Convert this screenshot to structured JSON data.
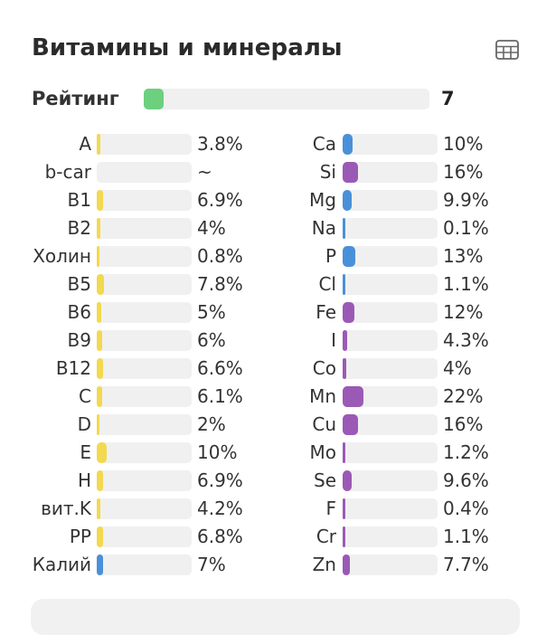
{
  "title": "Витамины и минералы",
  "rating": {
    "label": "Рейтинг",
    "value": "7",
    "fill_fraction": 0.07,
    "color": "#6cd07e"
  },
  "colors": {
    "yellow": "#f2d94e",
    "blue": "#4a90d9",
    "purple": "#9b59b6",
    "track": "#f0f0f0"
  },
  "icons": {
    "table": "table-icon"
  },
  "vitamins": [
    {
      "name": "A",
      "pct": "3.8%",
      "value": 3.8,
      "color": "yellow"
    },
    {
      "name": "b-car",
      "pct": "~",
      "value": 0,
      "color": "yellow"
    },
    {
      "name": "B1",
      "pct": "6.9%",
      "value": 6.9,
      "color": "yellow"
    },
    {
      "name": "B2",
      "pct": "4%",
      "value": 4,
      "color": "yellow"
    },
    {
      "name": "Холин",
      "pct": "0.8%",
      "value": 0.8,
      "color": "yellow"
    },
    {
      "name": "B5",
      "pct": "7.8%",
      "value": 7.8,
      "color": "yellow"
    },
    {
      "name": "B6",
      "pct": "5%",
      "value": 5,
      "color": "yellow"
    },
    {
      "name": "B9",
      "pct": "6%",
      "value": 6,
      "color": "yellow"
    },
    {
      "name": "B12",
      "pct": "6.6%",
      "value": 6.6,
      "color": "yellow"
    },
    {
      "name": "C",
      "pct": "6.1%",
      "value": 6.1,
      "color": "yellow"
    },
    {
      "name": "D",
      "pct": "2%",
      "value": 2,
      "color": "yellow"
    },
    {
      "name": "E",
      "pct": "10%",
      "value": 10,
      "color": "yellow"
    },
    {
      "name": "H",
      "pct": "6.9%",
      "value": 6.9,
      "color": "yellow"
    },
    {
      "name": "вит.K",
      "pct": "4.2%",
      "value": 4.2,
      "color": "yellow"
    },
    {
      "name": "PP",
      "pct": "6.8%",
      "value": 6.8,
      "color": "yellow"
    },
    {
      "name": "Калий",
      "pct": "7%",
      "value": 7,
      "color": "blue"
    }
  ],
  "minerals": [
    {
      "name": "Ca",
      "pct": "10%",
      "value": 10,
      "color": "blue"
    },
    {
      "name": "Si",
      "pct": "16%",
      "value": 16,
      "color": "purple"
    },
    {
      "name": "Mg",
      "pct": "9.9%",
      "value": 9.9,
      "color": "blue"
    },
    {
      "name": "Na",
      "pct": "0.1%",
      "value": 0.1,
      "color": "blue"
    },
    {
      "name": "P",
      "pct": "13%",
      "value": 13,
      "color": "blue"
    },
    {
      "name": "Cl",
      "pct": "1.1%",
      "value": 1.1,
      "color": "blue"
    },
    {
      "name": "Fe",
      "pct": "12%",
      "value": 12,
      "color": "purple"
    },
    {
      "name": "I",
      "pct": "4.3%",
      "value": 4.3,
      "color": "purple"
    },
    {
      "name": "Co",
      "pct": "4%",
      "value": 4,
      "color": "purple"
    },
    {
      "name": "Mn",
      "pct": "22%",
      "value": 22,
      "color": "purple"
    },
    {
      "name": "Cu",
      "pct": "16%",
      "value": 16,
      "color": "purple"
    },
    {
      "name": "Mo",
      "pct": "1.2%",
      "value": 1.2,
      "color": "purple"
    },
    {
      "name": "Se",
      "pct": "9.6%",
      "value": 9.6,
      "color": "purple"
    },
    {
      "name": "F",
      "pct": "0.4%",
      "value": 0.4,
      "color": "purple"
    },
    {
      "name": "Cr",
      "pct": "1.1%",
      "value": 1.1,
      "color": "purple"
    },
    {
      "name": "Zn",
      "pct": "7.7%",
      "value": 7.7,
      "color": "purple"
    }
  ]
}
